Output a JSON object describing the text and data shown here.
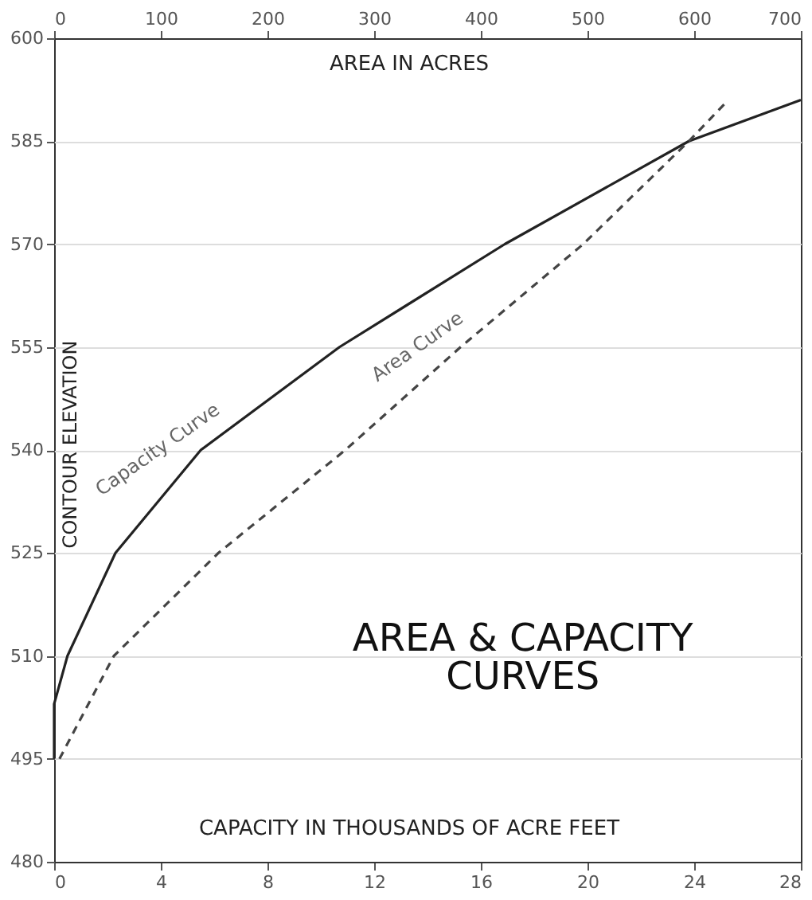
{
  "chart_data": {
    "type": "line",
    "title": "AREA & CAPACITY CURVES",
    "xlabel": "CAPACITY IN THOUSANDS OF ACRE FEET",
    "x2label": "AREA IN ACRES",
    "ylabel": "CONTOUR ELEVATION",
    "xlim": [
      0,
      28
    ],
    "xticks": [
      0,
      4,
      8,
      12,
      16,
      20,
      24,
      28
    ],
    "x2lim": [
      0,
      700
    ],
    "x2ticks": [
      0,
      100,
      200,
      300,
      400,
      500,
      600,
      700
    ],
    "ylim": [
      480,
      600
    ],
    "yticks": [
      480,
      495,
      510,
      525,
      540,
      555,
      570,
      585,
      600
    ],
    "grid": "y",
    "marker": "none",
    "series": [
      {
        "name": "Capacity Curve",
        "color": "#222222",
        "line_style": "solid",
        "x": [
          0,
          0,
          0.5,
          2.3,
          5.5,
          10.7,
          16.9,
          23.8,
          28
        ],
        "values": [
          495,
          503,
          510,
          525,
          540,
          555,
          570,
          585,
          591
        ]
      },
      {
        "name": "Area Curve",
        "color": "#444444",
        "line_style": "dashed",
        "axis": "x2",
        "x": [
          5,
          56,
          154,
          273,
          381,
          496,
          595,
          632
        ],
        "values": [
          495,
          510,
          525,
          540,
          555,
          570,
          585,
          591
        ]
      }
    ]
  }
}
